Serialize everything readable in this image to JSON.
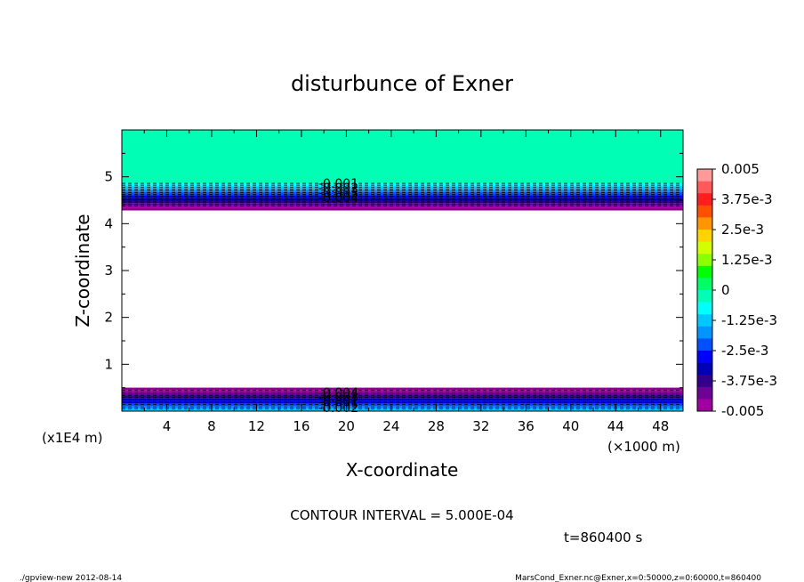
{
  "chart_data": {
    "type": "heatmap",
    "title": "disturbunce of Exner",
    "xlabel": "X-coordinate",
    "ylabel": "Z-coordinate",
    "x_unit": "(×1000 m)",
    "y_unit": "(x1E4 m)",
    "xlim": [
      0,
      50
    ],
    "ylim": [
      0,
      6
    ],
    "x_ticks": [
      "4",
      "8",
      "12",
      "16",
      "20",
      "24",
      "28",
      "32",
      "36",
      "40",
      "44",
      "48"
    ],
    "y_ticks": [
      "1",
      "2",
      "3",
      "4",
      "5"
    ],
    "colorbar": {
      "labels": [
        "0.005",
        "3.75e-3",
        "2.5e-3",
        "1.25e-3",
        "0",
        "-1.25e-3",
        "-2.5e-3",
        "-3.75e-3",
        "-0.005"
      ],
      "colors": [
        "#ff9a9a",
        "#ff5a5a",
        "#ff1e1e",
        "#ff5000",
        "#ff9600",
        "#ffd200",
        "#d2ff00",
        "#8cff00",
        "#00ff00",
        "#00ff64",
        "#00ffb4",
        "#00ffff",
        "#00c8ff",
        "#0096ff",
        "#0050ff",
        "#0000ff",
        "#0000b4",
        "#32008c",
        "#6e0096",
        "#a000a0"
      ]
    },
    "regions": [
      {
        "name": "upper",
        "z_range": [
          4.3,
          6.0
        ],
        "levels": [
          0.0,
          -0.001,
          -0.002,
          -0.003,
          -0.004,
          -0.005
        ]
      },
      {
        "name": "lower",
        "z_range": [
          0.0,
          0.5
        ],
        "levels": [
          -0.005,
          -0.004,
          -0.003,
          -0.002,
          -0.001
        ]
      }
    ],
    "contour_labels_upper": [
      "-0.001",
      "-0.002",
      "-0.003",
      "-0.004"
    ],
    "contour_labels_lower": [
      "-0.004",
      "-0.003",
      "-0.001",
      "-0.002"
    ]
  },
  "footer": {
    "contour_interval": "CONTOUR INTERVAL = 5.000E-04",
    "time": "t=860400 s",
    "program": "./gpview-new   2012-08-14",
    "source": "MarsCond_Exner.nc@Exner,x=0:50000,z=0:60000,t=860400"
  }
}
